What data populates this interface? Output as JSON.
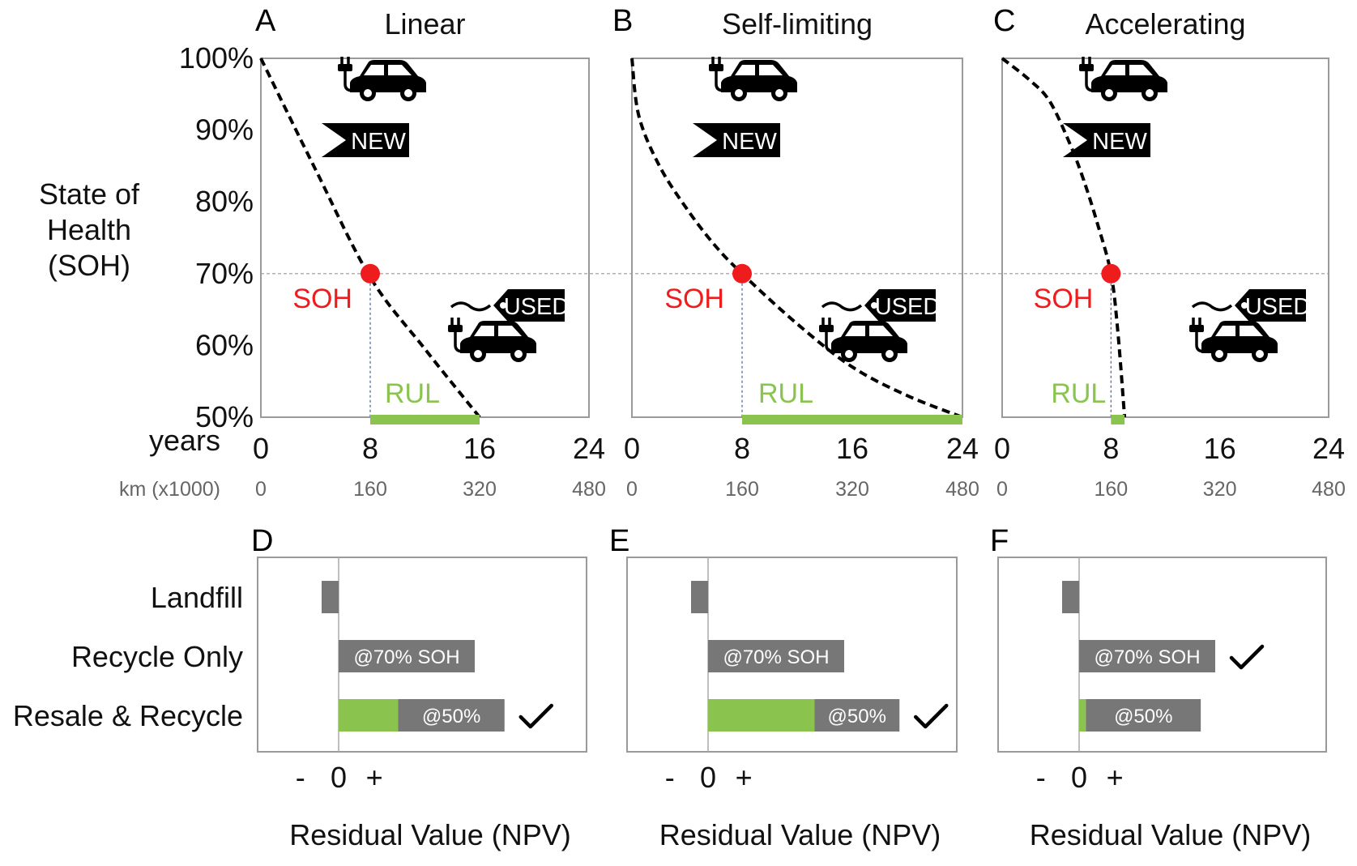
{
  "figure": {
    "top_row": {
      "yaxis_title_lines": [
        "State of",
        "Health",
        "(SOH)"
      ],
      "y_ticks": [
        "100%",
        "90%",
        "80%",
        "70%",
        "60%",
        "50%"
      ],
      "years_label": "years",
      "km_label": "km (x1000)",
      "year_ticks": [
        "0",
        "8",
        "16",
        "24"
      ],
      "km_ticks": [
        "0",
        "160",
        "320",
        "480"
      ],
      "soh_label": "SOH",
      "rul_label": "RUL",
      "new_label": "NEW",
      "used_label": "USED",
      "icons": {
        "car": "ev-car-icon",
        "new_tag": "new-tag-icon",
        "used_tag": "used-tag-icon"
      }
    },
    "bottom_row": {
      "categories": [
        "Landfill",
        "Recycle Only",
        "Resale & Recycle"
      ],
      "x_ticks": [
        "-",
        "0",
        "+"
      ],
      "xlabel": "Residual Value (NPV)",
      "recycle_bar_label": "@70% SOH",
      "resale_bar_label": "@50%",
      "check_icon": "check-mark-icon"
    }
  },
  "chart_data": [
    {
      "type": "line",
      "panel": "A",
      "title": "Linear",
      "xlabel": "years",
      "ylabel": "State of Health (SOH)",
      "xlim": [
        0,
        24
      ],
      "ylim": [
        50,
        100
      ],
      "series": [
        {
          "x": [
            0,
            4,
            8,
            12,
            16
          ],
          "y": [
            100,
            84.5,
            69.5,
            59.5,
            50
          ]
        }
      ],
      "threshold_soh": 70,
      "marker": {
        "x": 8,
        "y": 70
      },
      "rul_range": [
        8,
        16
      ]
    },
    {
      "type": "line",
      "panel": "B",
      "title": "Self-limiting",
      "xlabel": "years",
      "ylabel": "State of Health (SOH)",
      "xlim": [
        0,
        24
      ],
      "ylim": [
        50,
        100
      ],
      "series": [
        {
          "x": [
            0,
            0.5,
            2,
            4,
            6,
            8,
            12,
            16,
            20,
            24
          ],
          "y": [
            100,
            92,
            85,
            79,
            74,
            70,
            63,
            57,
            53,
            50
          ]
        }
      ],
      "threshold_soh": 70,
      "marker": {
        "x": 8,
        "y": 70
      },
      "rul_range": [
        8,
        24
      ]
    },
    {
      "type": "line",
      "panel": "C",
      "title": "Accelerating",
      "xlabel": "years",
      "ylabel": "State of Health (SOH)",
      "xlim": [
        0,
        24
      ],
      "ylim": [
        50,
        100
      ],
      "series": [
        {
          "x": [
            0,
            2,
            3.5,
            5,
            6,
            7,
            8,
            8.5,
            9
          ],
          "y": [
            100,
            97,
            94,
            88,
            83,
            77,
            70,
            62,
            50
          ]
        }
      ],
      "threshold_soh": 70,
      "marker": {
        "x": 8,
        "y": 70
      },
      "rul_range": [
        8,
        9
      ]
    },
    {
      "type": "bar",
      "panel": "D",
      "xlabel": "Residual Value (NPV)",
      "categories": [
        "Landfill",
        "Recycle Only",
        "Resale & Recycle"
      ],
      "xlim": [
        -1,
        3
      ],
      "series": [
        {
          "values": [
            0,
            0,
            0.7
          ]
        },
        {
          "values": [
            -0.2,
            1.6,
            1.25
          ]
        }
      ],
      "check": "Resale & Recycle"
    },
    {
      "type": "bar",
      "panel": "E",
      "xlabel": "Residual Value (NPV)",
      "categories": [
        "Landfill",
        "Recycle Only",
        "Resale & Recycle"
      ],
      "xlim": [
        -1,
        3
      ],
      "series": [
        {
          "values": [
            0,
            0,
            1.25
          ]
        },
        {
          "values": [
            -0.2,
            1.6,
            1.0
          ]
        }
      ],
      "check": "Resale & Recycle"
    },
    {
      "type": "bar",
      "panel": "F",
      "xlabel": "Residual Value (NPV)",
      "categories": [
        "Landfill",
        "Recycle Only",
        "Resale & Recycle"
      ],
      "xlim": [
        -1,
        3
      ],
      "series": [
        {
          "values": [
            0,
            0,
            0.08
          ]
        },
        {
          "values": [
            -0.2,
            1.6,
            1.35
          ]
        }
      ],
      "check": "Recycle Only"
    }
  ]
}
